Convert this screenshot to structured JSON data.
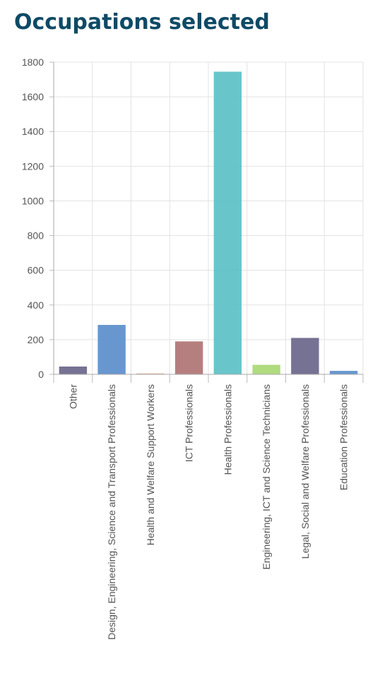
{
  "title": "Occupations selected",
  "chart_data": {
    "type": "bar",
    "title": "Occupations selected",
    "xlabel": "",
    "ylabel": "",
    "ylim": [
      0,
      1800
    ],
    "yticks": [
      0,
      200,
      400,
      600,
      800,
      1000,
      1200,
      1400,
      1600,
      1800
    ],
    "grid": true,
    "categories": [
      "Other",
      "Design, Engineering, Science and Transport Professionals",
      "Health and Welfare Support Workers",
      "ICT Professionals",
      "Health Professionals",
      "Engineering, ICT and Science Technicians",
      "Legal, Social and Welfare Professionals",
      "Education Professionals"
    ],
    "values": [
      45,
      285,
      5,
      190,
      1745,
      55,
      210,
      20
    ],
    "colors": [
      "#6a668a",
      "#5b8ecc",
      "#d9a684",
      "#b07474",
      "#5bc1c6",
      "#a9d874",
      "#6a668a",
      "#5b8ecc"
    ]
  }
}
